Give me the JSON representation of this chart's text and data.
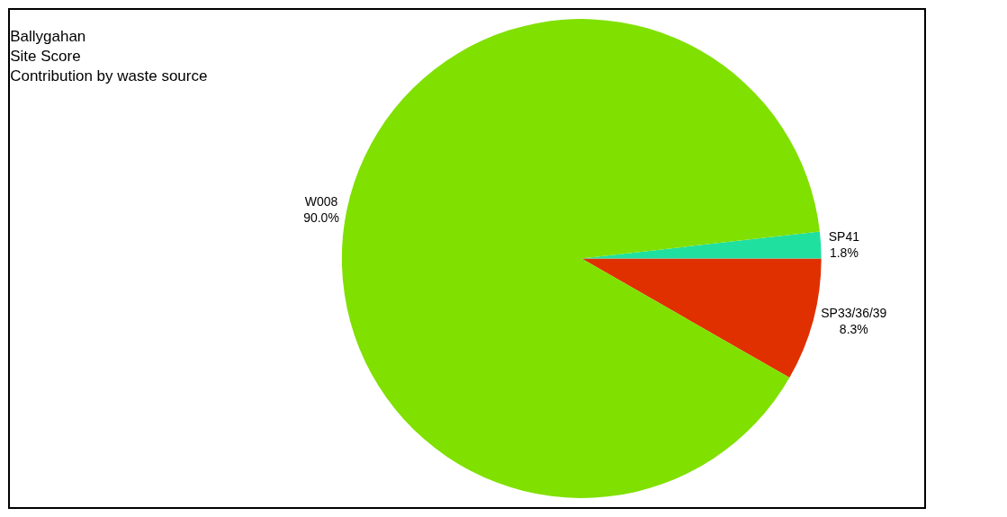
{
  "chart_data": {
    "type": "pie",
    "title": "Ballygahan\nSite Score\nContribution by waste source",
    "categories": [
      "SP33/36/39",
      "SP41",
      "W008"
    ],
    "values": [
      8.3,
      1.8,
      90.0
    ],
    "value_labels": [
      "8.3%",
      "1.8%",
      "90.0%"
    ],
    "colors": [
      "#e03000",
      "#20e0a0",
      "#80e000"
    ],
    "legend": false
  }
}
